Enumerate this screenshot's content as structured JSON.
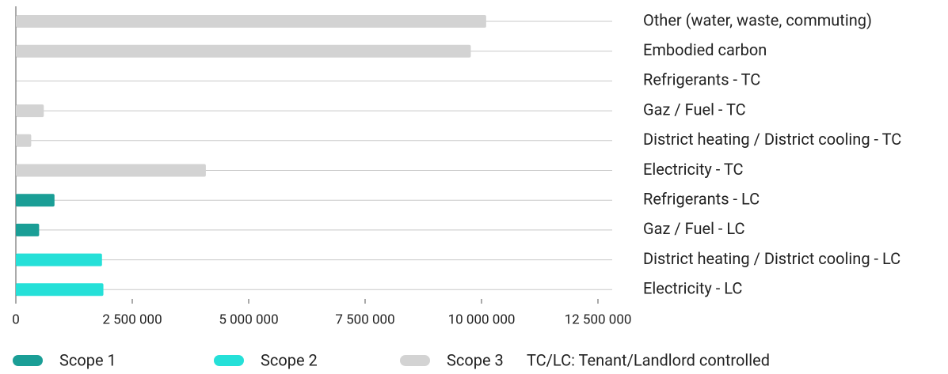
{
  "chart_data": {
    "type": "bar",
    "categories": [
      "Other (water, waste, commuting)",
      "Embodied carbon",
      "Refrigerants - TC",
      "Gaz / Fuel - TC",
      "District heating / District cooling - TC",
      "Electricity - TC",
      "Refrigerants - LC",
      "Gaz / Fuel - LC",
      "District heating / District cooling - LC",
      "Electricity - LC"
    ],
    "series": [
      {
        "name": "Scope 1",
        "color": "#1a9e96",
        "values": [
          null,
          null,
          null,
          null,
          null,
          null,
          830000,
          500000,
          null,
          null
        ]
      },
      {
        "name": "Scope 2",
        "color": "#25e0d8",
        "values": [
          null,
          null,
          null,
          null,
          null,
          null,
          null,
          null,
          1850000,
          1880000
        ]
      },
      {
        "name": "Scope 3",
        "color": "#d3d3d3",
        "values": [
          10100000,
          9770000,
          0,
          600000,
          330000,
          4080000,
          null,
          null,
          null,
          null
        ]
      }
    ],
    "xlim": [
      0,
      12500000
    ],
    "xticks": [
      0,
      {
        "value": 2500000,
        "label": "2 500 000"
      },
      {
        "value": 5000000,
        "label": "5 000 000"
      },
      {
        "value": 7500000,
        "label": "7 500 000"
      },
      {
        "value": 10000000,
        "label": "10 000 000"
      },
      {
        "value": 12500000,
        "label": "12 500 000"
      }
    ],
    "note": "TC/LC: Tenant/Landlord controlled",
    "grid": true
  }
}
